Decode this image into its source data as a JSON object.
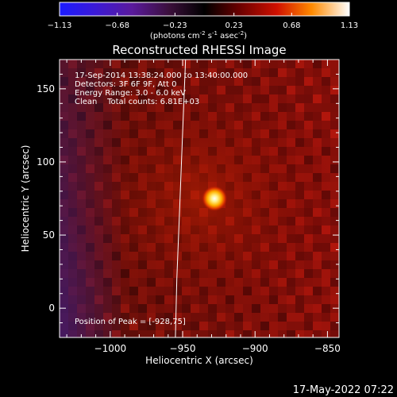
{
  "colorbar": {
    "ticks": [
      "-1.13",
      "-0.68",
      "-0.23",
      "0.23",
      "0.68",
      "1.13"
    ],
    "units_main": "(photons cm",
    "units_sup1": "-2",
    "units_mid": " s",
    "units_sup2": "-1",
    "units_end1": " asec",
    "units_sup3": "-2",
    "units_close": ")"
  },
  "chart_data": {
    "type": "heatmap",
    "title": "Reconstructed RHESSI Image",
    "xlabel": "Heliocentric X (arcsec)",
    "ylabel": "Heliocentric Y (arcsec)",
    "xlim": [
      -1035,
      -842
    ],
    "ylim": [
      -20,
      170
    ],
    "xticks": [
      -1000,
      -950,
      -900,
      -850
    ],
    "xtick_labels": [
      "−1000",
      "−950",
      "−900",
      "−850"
    ],
    "yticks": [
      0,
      50,
      100,
      150
    ],
    "ytick_labels": [
      "0",
      "50",
      "100",
      "150"
    ],
    "value_range": [
      -1.13,
      1.13
    ],
    "peak": {
      "x": -928,
      "y": 75
    },
    "annotations": {
      "line1": "17-Sep-2014 13:38:24.000 to 13:40:00.000",
      "line2": "Detectors: 3F 6F 9F, Att 0",
      "line3": "Energy Range: 3.0 - 6.0 keV",
      "line4": "Clean    Total counts: 6.81E+03",
      "peak_label": "Position of Peak = [-928,75]"
    },
    "limb_curve": [
      [
        -948,
        170
      ],
      [
        -950,
        120
      ],
      [
        -952,
        70
      ],
      [
        -954,
        20
      ],
      [
        -955,
        -20
      ]
    ]
  },
  "footer": {
    "timestamp": "17-May-2022 07:22"
  }
}
